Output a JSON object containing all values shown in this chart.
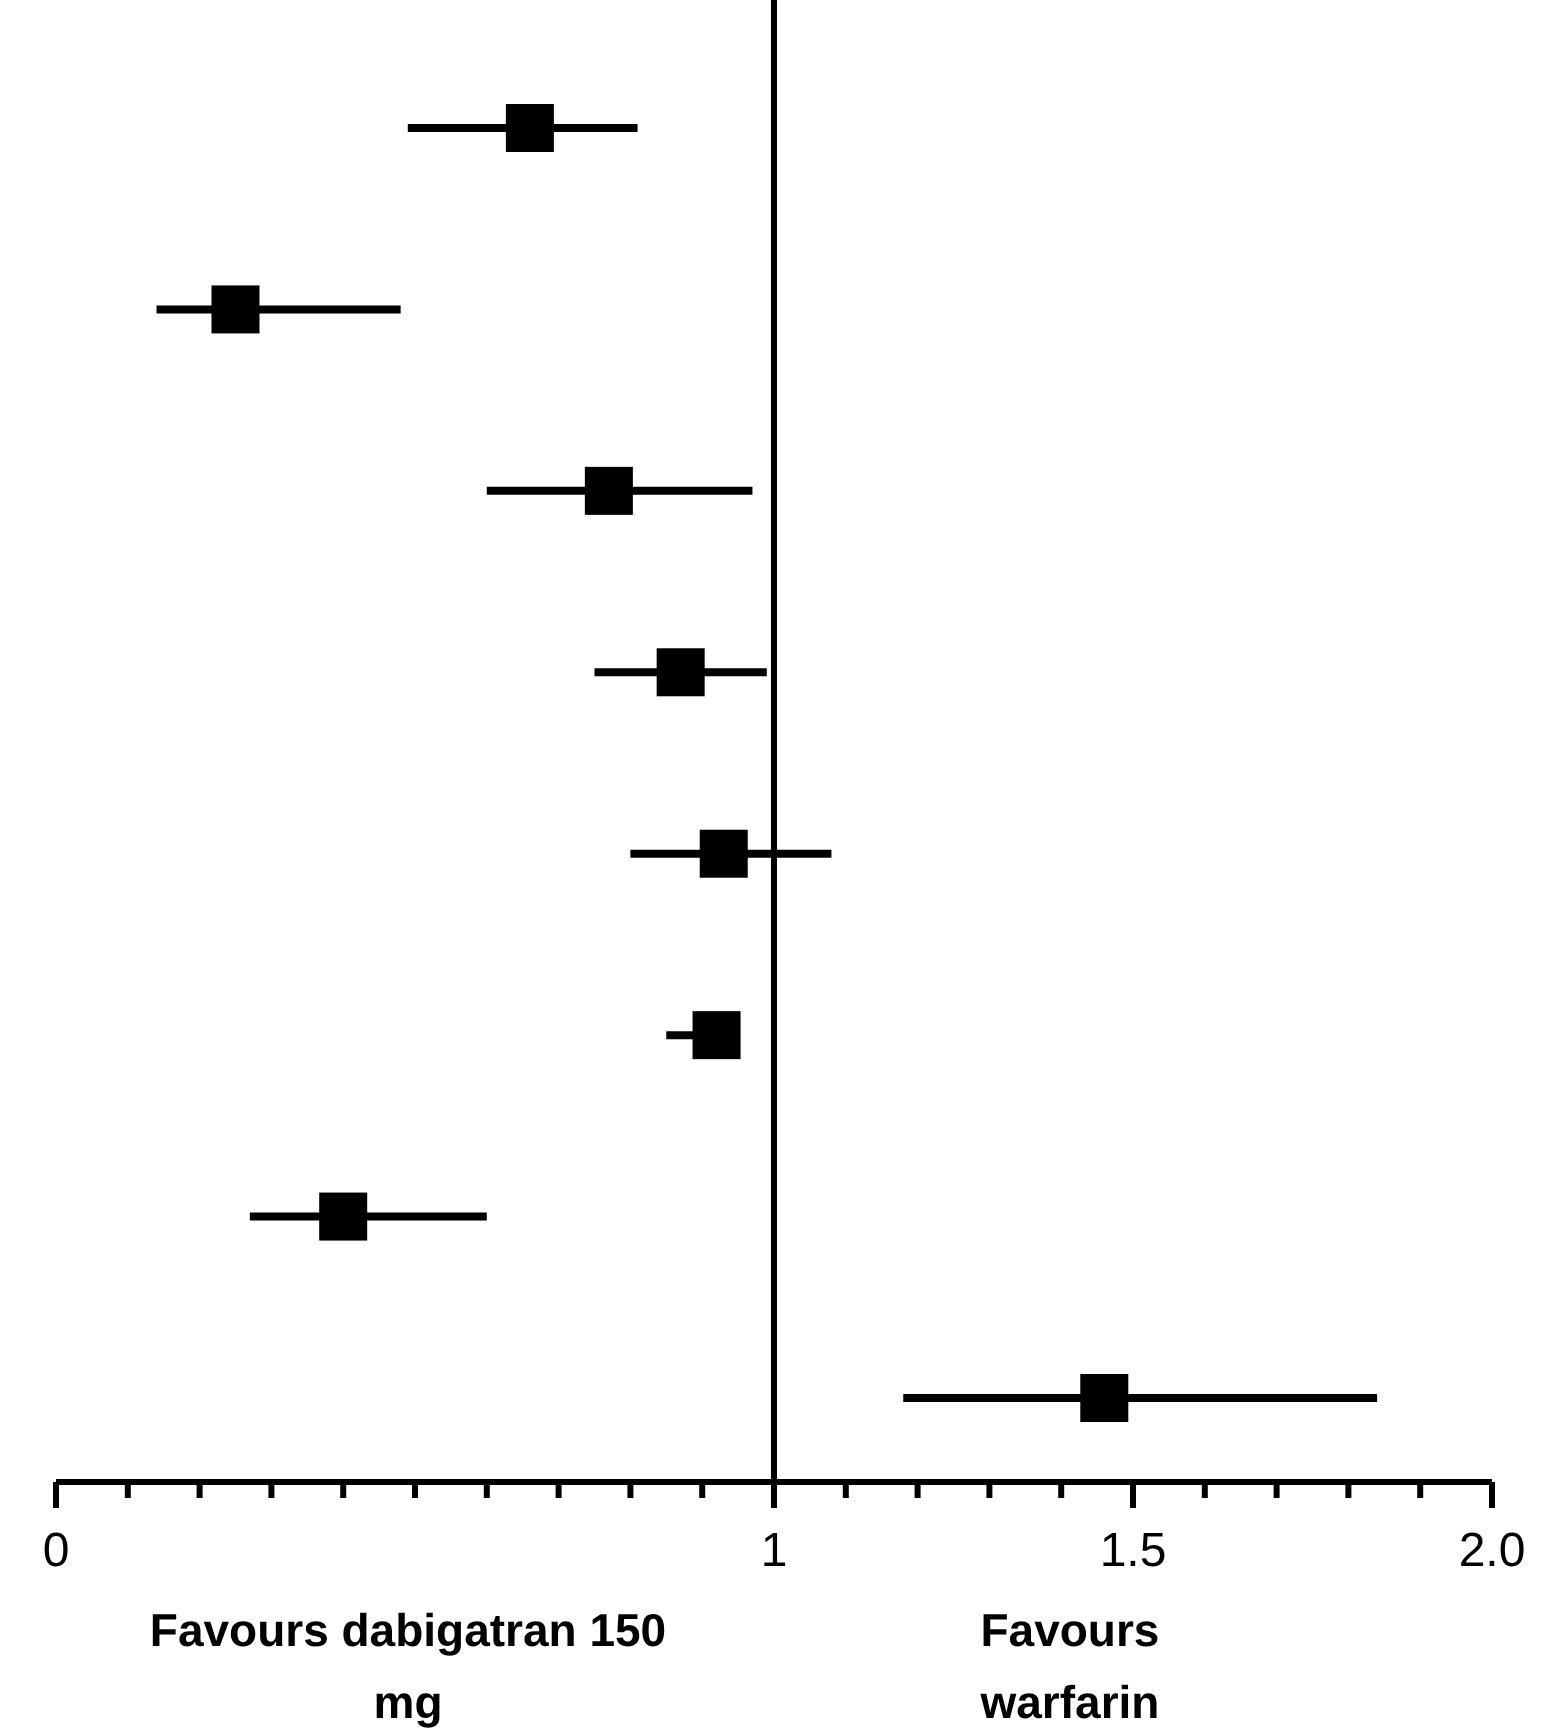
{
  "chart_data": {
    "type": "scatter",
    "orientation": "horizontal",
    "categories": [
      null,
      null,
      null,
      null,
      null,
      null,
      null,
      null
    ],
    "values": [
      0.66,
      0.25,
      0.77,
      0.87,
      0.93,
      0.92,
      0.4,
      1.46
    ],
    "errors": [
      [
        0.49,
        0.81
      ],
      [
        0.14,
        0.48
      ],
      [
        0.6,
        0.97
      ],
      [
        0.75,
        0.99
      ],
      [
        0.8,
        1.08
      ],
      [
        0.85,
        0.95
      ],
      [
        0.27,
        0.6
      ],
      [
        1.18,
        1.84
      ]
    ],
    "color": "#000000",
    "marker": "square",
    "xlim": [
      0,
      2
    ],
    "xticks": [
      0,
      {
        "value": 0.1,
        "label": null
      },
      {
        "value": 0.2,
        "label": null
      },
      {
        "value": 0.3,
        "label": null
      },
      {
        "value": 0.4,
        "label": null
      },
      {
        "value": 0.5,
        "label": null
      },
      {
        "value": 0.6,
        "label": null
      },
      {
        "value": 0.7,
        "label": null
      },
      {
        "value": 0.8,
        "label": null
      },
      {
        "value": 0.9,
        "label": null
      },
      1,
      {
        "value": 1.1,
        "label": null
      },
      {
        "value": 1.2,
        "label": null
      },
      {
        "value": 1.3,
        "label": null
      },
      {
        "value": 1.4,
        "label": null
      },
      1.5,
      {
        "value": 1.6,
        "label": null
      },
      {
        "value": 1.7,
        "label": null
      },
      {
        "value": 1.8,
        "label": null
      },
      {
        "value": 1.9,
        "label": null
      },
      {
        "value": 2,
        "label": "2.0"
      }
    ],
    "ref_lines": [
      {
        "axis": "x",
        "value": 1,
        "color": "#000000"
      }
    ],
    "tick_labels": "x",
    "grid": false,
    "annotations": [
      "Favours dabigatran 150 mg",
      "Favours warfarin"
    ]
  }
}
